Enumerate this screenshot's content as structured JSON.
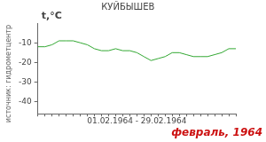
{
  "chart_data": {
    "type": "line",
    "title": "КУЙБЫШЕВ",
    "y_label": "t,°C",
    "x_label": "01.02.1964 - 29.02.1964",
    "source": "источник: гидрометцентр",
    "footer": "февраль, 1964",
    "categories": [
      null,
      null,
      null,
      null,
      null,
      null,
      null,
      null,
      null,
      null,
      null,
      null,
      null,
      null,
      null,
      null,
      null,
      null,
      null,
      null,
      null,
      null,
      null,
      null,
      null,
      null,
      null,
      null,
      null
    ],
    "values": [
      -12,
      -12,
      -11,
      -9,
      -9,
      -9,
      -10,
      -11,
      -13,
      -14,
      -14,
      -13,
      -14,
      -14,
      -15,
      -17,
      -19,
      -18,
      -17,
      -15,
      -15,
      -16,
      -17,
      -17,
      -17,
      -16,
      -15,
      -13,
      -13
    ],
    "color": "#33a833",
    "ylim": [
      -46,
      0
    ],
    "yticks": [
      -10,
      -20,
      -30,
      -40
    ],
    "grid": false,
    "tick_labels": "y"
  }
}
